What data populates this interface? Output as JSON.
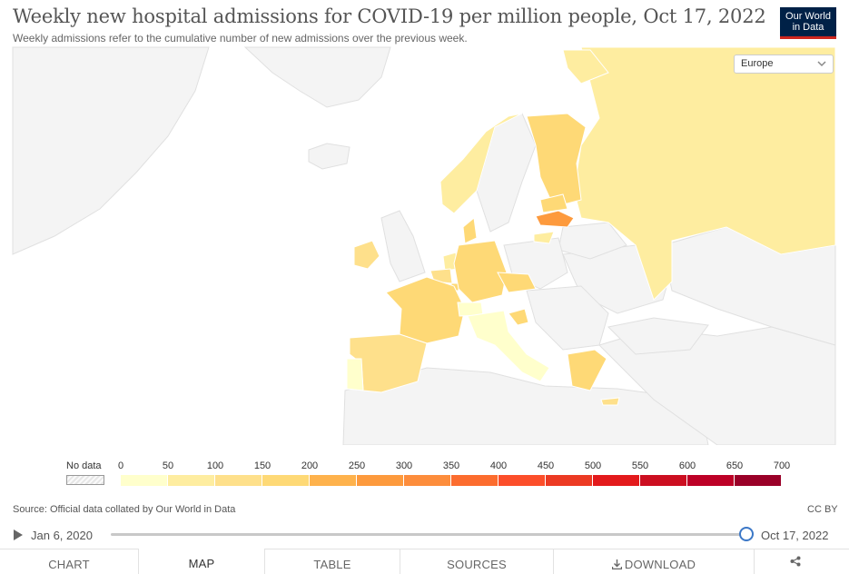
{
  "title": "Weekly new hospital admissions for COVID-19 per million people, Oct 17, 2022",
  "subtitle": "Weekly admissions refer to the cumulative number of new admissions over the previous week.",
  "logo": {
    "line1": "Our World",
    "line2": "in Data"
  },
  "region_selector": {
    "value": "Europe"
  },
  "legend": {
    "no_data_label": "No data",
    "ticks": [
      "0",
      "50",
      "100",
      "150",
      "200",
      "250",
      "300",
      "350",
      "400",
      "450",
      "500",
      "550",
      "600",
      "650",
      "700"
    ],
    "colors": [
      "#ffffcc",
      "#feeda0",
      "#fee08b",
      "#fed976",
      "#feb24c",
      "#fd9a3d",
      "#fd8d3c",
      "#fc6c2e",
      "#fc4e2a",
      "#ec3a23",
      "#e31a1c",
      "#cc0e20",
      "#bd0026",
      "#9a0028",
      "#800026"
    ],
    "no_data_color": "#e8e8e8"
  },
  "map_colors": {
    "ocean": "#ffffff",
    "land_outside": "#f4f4f4",
    "border": "#e0e0e0",
    "russia": "#feeda0",
    "spain": "#fee08b",
    "portugal": "#ffffcc",
    "france": "#fed976",
    "germany": "#fed976",
    "italy": "#ffffcc",
    "switzerland": "#ffffcc",
    "ireland": "#fee08b",
    "norway": "#feeda0",
    "finland": "#fed976",
    "denmark": "#fed976",
    "netherlands": "#feeda0",
    "belgium": "#fee08b",
    "luxembourg": "#fed976",
    "czechia": "#fed976",
    "estonia": "#fed976",
    "latvia": "#fd9a3d",
    "lithuania": "#feeda0",
    "greece": "#fed976",
    "cyprus": "#fee08b",
    "croatia": "#fed976",
    "svalbard": "#feeda0"
  },
  "source": "Source: Official data collated by Our World in Data",
  "license": "CC BY",
  "timeline": {
    "start": "Jan 6, 2020",
    "end": "Oct 17, 2022",
    "position": 1.0
  },
  "tabs": {
    "chart": "CHART",
    "map": "MAP",
    "table": "TABLE",
    "sources": "SOURCES",
    "download": "DOWNLOAD"
  }
}
